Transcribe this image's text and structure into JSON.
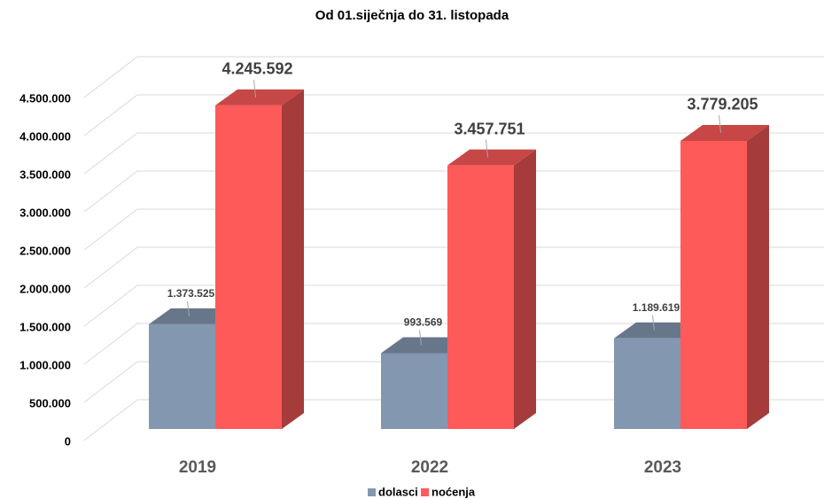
{
  "chart_data": {
    "type": "bar3d",
    "title": "Od 01.siječnja do 31. listopada",
    "categories": [
      "2019",
      "2022",
      "2023"
    ],
    "series": [
      {
        "name": "dolasci",
        "color": "#8497b0",
        "values": [
          1373525,
          993569,
          1189619
        ],
        "value_labels": [
          "1.373.525",
          "993.569",
          "1.189.619"
        ]
      },
      {
        "name": "noćenja",
        "color": "#ff5a5a",
        "values": [
          4245592,
          3457751,
          3779205
        ],
        "value_labels": [
          "4.245.592",
          "3.457.751",
          "3.779.205"
        ]
      }
    ],
    "ylim": [
      0,
      4500000
    ],
    "yticks": [
      0,
      {
        "value": 500000,
        "label": "500.000"
      },
      {
        "value": 1000000,
        "label": "1.000.000"
      },
      {
        "value": 1500000,
        "label": "1.500.000"
      },
      {
        "value": 2000000,
        "label": "2.000.000"
      },
      {
        "value": 2500000,
        "label": "2.500.000"
      },
      {
        "value": 3000000,
        "label": "3.000.000"
      },
      {
        "value": 3500000,
        "label": "3.500.000"
      },
      {
        "value": 4000000,
        "label": "4.000.000"
      },
      {
        "value": 4500000,
        "label": "4.500.000"
      }
    ],
    "grid": true,
    "legend": "bottom"
  }
}
